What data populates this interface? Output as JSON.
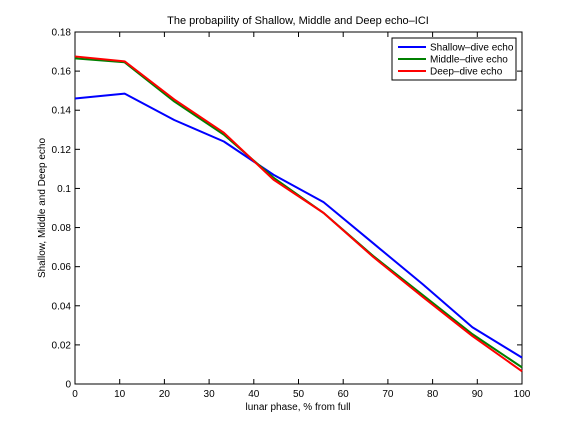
{
  "chart_data": {
    "type": "line",
    "title": "The probapility of Shallow, Middle and Deep echo–ICI",
    "xlabel": "lunar phase, % from full",
    "ylabel": "Shallow, Middle and Deep echo",
    "xlim": [
      0,
      100
    ],
    "ylim": [
      0,
      0.18
    ],
    "x_ticks": [
      "0",
      "10",
      "20",
      "30",
      "40",
      "50",
      "60",
      "70",
      "80",
      "90",
      "100"
    ],
    "y_ticks": [
      "0",
      "0.02",
      "0.04",
      "0.06",
      "0.08",
      "0.1",
      "0.12",
      "0.14",
      "0.16",
      "0.18"
    ],
    "grid": false,
    "legend_position": "top-right",
    "x": [
      0,
      11.1,
      22.2,
      33.3,
      44.4,
      55.6,
      66.7,
      77.8,
      88.9,
      100
    ],
    "series": [
      {
        "name": "Shallow–dive echo",
        "color": "#0000ff",
        "values": [
          0.146,
          0.1485,
          0.135,
          0.124,
          0.107,
          0.093,
          0.072,
          0.051,
          0.029,
          0.0135
        ]
      },
      {
        "name": "Middle–dive echo",
        "color": "#008000",
        "values": [
          0.1665,
          0.1645,
          0.1445,
          0.1275,
          0.1055,
          0.0875,
          0.0655,
          0.0455,
          0.0255,
          0.0085
        ]
      },
      {
        "name": "Deep–dive echo",
        "color": "#ff0000",
        "values": [
          0.1675,
          0.165,
          0.1455,
          0.1285,
          0.1045,
          0.0875,
          0.065,
          0.0445,
          0.0245,
          0.0065
        ]
      }
    ]
  }
}
